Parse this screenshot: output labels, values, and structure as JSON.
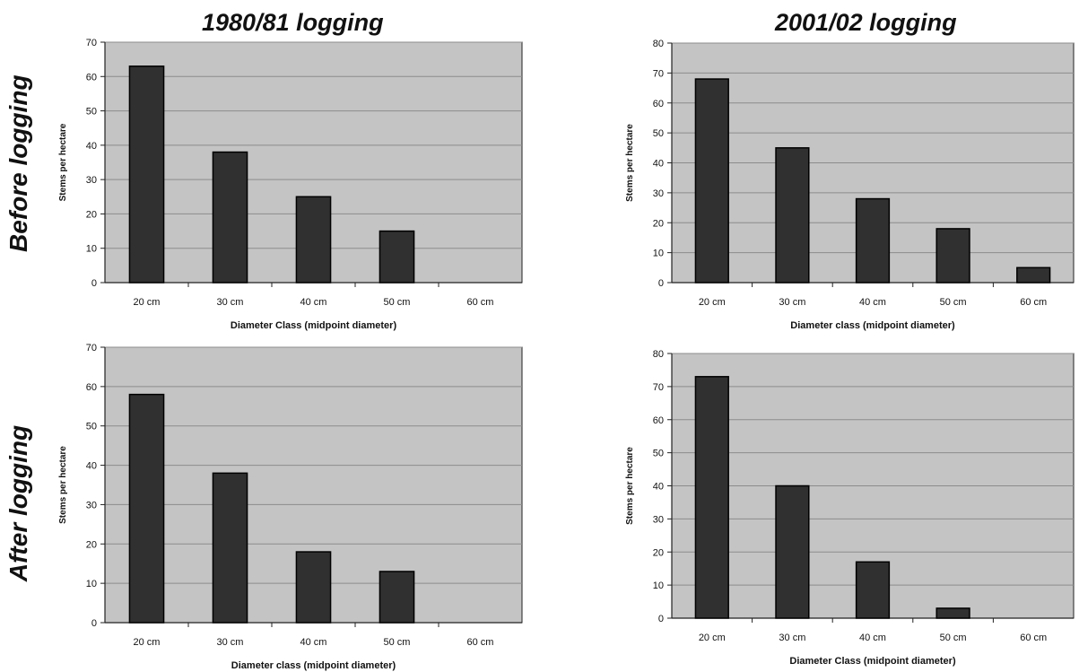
{
  "columns": [
    "1980/81 logging",
    "2001/02 logging"
  ],
  "rows": [
    "Before logging",
    "After logging"
  ],
  "chart_data": [
    {
      "type": "bar",
      "row": "Before logging",
      "column": "1980/81 logging",
      "categories": [
        "20 cm",
        "30 cm",
        "40 cm",
        "50 cm",
        "60 cm"
      ],
      "values": [
        63,
        38,
        25,
        15,
        0
      ],
      "xlabel": "Diameter Class (midpoint diameter)",
      "ylabel": "Stems per hectare",
      "ylim": [
        0,
        70
      ],
      "yticks": [
        0,
        10,
        20,
        30,
        40,
        50,
        60,
        70
      ],
      "grid": true
    },
    {
      "type": "bar",
      "row": "Before logging",
      "column": "2001/02 logging",
      "categories": [
        "20 cm",
        "30 cm",
        "40 cm",
        "50 cm",
        "60 cm"
      ],
      "values": [
        68,
        45,
        28,
        18,
        5
      ],
      "xlabel": "Diameter class (midpoint diameter)",
      "ylabel": "Stems per hectare",
      "ylim": [
        0,
        80
      ],
      "yticks": [
        0,
        10,
        20,
        30,
        40,
        50,
        60,
        70,
        80
      ],
      "grid": true
    },
    {
      "type": "bar",
      "row": "After logging",
      "column": "1980/81 logging",
      "categories": [
        "20 cm",
        "30 cm",
        "40 cm",
        "50 cm",
        "60 cm"
      ],
      "values": [
        58,
        38,
        18,
        13,
        0
      ],
      "xlabel": "Diameter class (midpoint diameter)",
      "ylabel": "Stems per hectare",
      "ylim": [
        0,
        70
      ],
      "yticks": [
        0,
        10,
        20,
        30,
        40,
        50,
        60,
        70
      ],
      "grid": true
    },
    {
      "type": "bar",
      "row": "After logging",
      "column": "2001/02 logging",
      "categories": [
        "20 cm",
        "30 cm",
        "40 cm",
        "50 cm",
        "60 cm"
      ],
      "values": [
        73,
        40,
        17,
        3,
        0
      ],
      "xlabel": "Diameter Class (midpoint diameter)",
      "ylabel": "Stems per hectare",
      "ylim": [
        0,
        80
      ],
      "yticks": [
        0,
        10,
        20,
        30,
        40,
        50,
        60,
        70,
        80
      ],
      "grid": true
    }
  ],
  "colors": {
    "plot_background": "#c4c4c4",
    "bar_fill": "#303030",
    "gridline": "#8c8c8c",
    "axis": "#222222"
  }
}
